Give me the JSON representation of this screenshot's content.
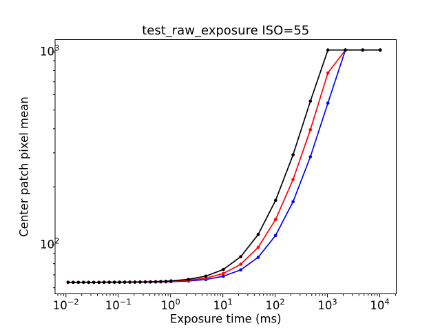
{
  "figure": {
    "background_color": "#ffffff",
    "axes_line_color": "#000000"
  },
  "chart_data": {
    "type": "line",
    "title": "test_raw_exposure ISO=55",
    "xlabel": "Exposure time (ms)",
    "ylabel": "Center patch pixel mean",
    "xscale": "log",
    "yscale": "log",
    "grid": false,
    "legend": false,
    "xlim": [
      0.0062,
      20700
    ],
    "ylim": [
      55.8,
      1158
    ],
    "x_tick_exponents": [
      -2,
      -1,
      0,
      1,
      2,
      3,
      4
    ],
    "y_tick_exponents": [
      2,
      3
    ],
    "x": [
      0.011,
      0.0138,
      0.0173,
      0.0217,
      0.0272,
      0.0341,
      0.0428,
      0.0537,
      0.0673,
      0.0845,
      0.106,
      0.133,
      0.167,
      0.209,
      0.262,
      0.329,
      0.413,
      0.518,
      0.649,
      0.814,
      1.02,
      2.2,
      4.74,
      10.2,
      22,
      47.4,
      102,
      220,
      473,
      1020,
      2200,
      4730,
      10200
    ],
    "series": [
      {
        "name": "blue",
        "color": "#0000ff",
        "values": [
          64.0,
          64.0,
          64.0,
          64.0,
          64.0,
          64.0,
          64.0,
          64.0,
          64.0,
          64.0,
          64.0,
          64.1,
          64.1,
          64.1,
          64.1,
          64.2,
          64.2,
          64.2,
          64.3,
          64.4,
          64.5,
          65.0,
          66.2,
          68.8,
          74.3,
          86.3,
          111.9,
          167.4,
          286.3,
          543.4,
          1023,
          1023,
          1023
        ]
      },
      {
        "name": "red",
        "color": "#ff0000",
        "values": [
          64.0,
          64.0,
          64.0,
          64.0,
          64.0,
          64.0,
          64.0,
          64.0,
          64.0,
          64.1,
          64.1,
          64.1,
          64.1,
          64.1,
          64.2,
          64.2,
          64.3,
          64.4,
          64.5,
          64.6,
          64.7,
          65.5,
          67.3,
          71.1,
          79.4,
          97.2,
          135.4,
          218.0,
          395.1,
          778.0,
          1023,
          1023,
          1023
        ]
      },
      {
        "name": "black",
        "color": "#000000",
        "values": [
          64.0,
          64.0,
          64.0,
          64.0,
          64.0,
          64.0,
          64.0,
          64.1,
          64.1,
          64.1,
          64.1,
          64.1,
          64.2,
          64.2,
          64.3,
          64.3,
          64.4,
          64.5,
          64.7,
          64.8,
          65.1,
          66.3,
          68.9,
          74.6,
          86.9,
          113.3,
          170.1,
          292.8,
          555.9,
          1023,
          1023,
          1023,
          1023
        ]
      }
    ]
  }
}
